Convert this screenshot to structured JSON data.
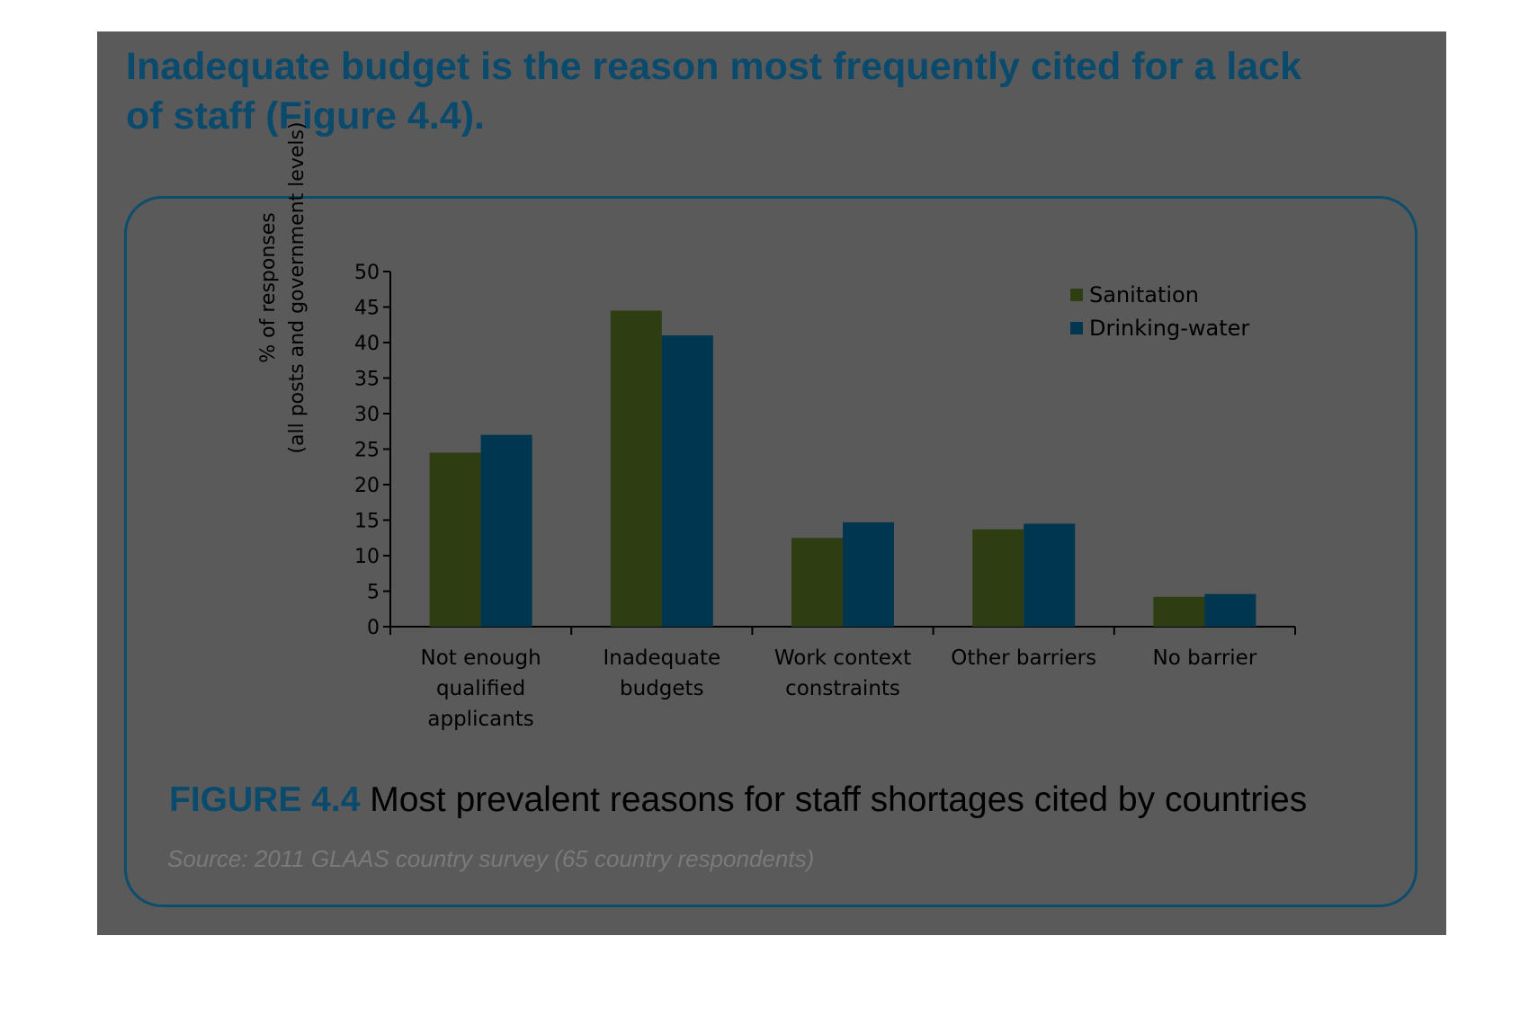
{
  "headline": {
    "line1": "Inadequate budget is the reason most frequently cited for a lack",
    "line2": "of staff (Figure 4.4)."
  },
  "figure": {
    "number": "FIGURE 4.4",
    "title": "Most prevalent reasons for staff shortages cited by countries",
    "source": "Source: 2011 GLAAS country survey (65 country respondents)"
  },
  "colors": {
    "page_background": "#5a5a5a",
    "headline": "#0a4a6c",
    "frame_border": "#0b4d6d",
    "sanitation": "#2f3d12",
    "drinking_water": "#003650",
    "axis": "#000000"
  },
  "chart_data": {
    "type": "bar",
    "categories": [
      [
        "Not enough",
        "qualified",
        "applicants"
      ],
      [
        "Inadequate",
        "budgets"
      ],
      [
        "Work context",
        "constraints"
      ],
      [
        "Other barriers"
      ],
      [
        "No barrier"
      ]
    ],
    "series": [
      {
        "name": "Sanitation",
        "values": [
          24.5,
          44.5,
          12.5,
          13.7,
          4.2
        ]
      },
      {
        "name": "Drinking-water",
        "values": [
          27,
          41,
          14.7,
          14.5,
          4.6
        ]
      }
    ],
    "ylabel": [
      "% of responses",
      "(all posts and government levels)"
    ],
    "xlabel": "",
    "ylim": [
      0,
      50
    ],
    "yticks": [
      0,
      5,
      10,
      15,
      20,
      25,
      30,
      35,
      40,
      45,
      50
    ],
    "grid": false,
    "legend_position": "top-right"
  }
}
